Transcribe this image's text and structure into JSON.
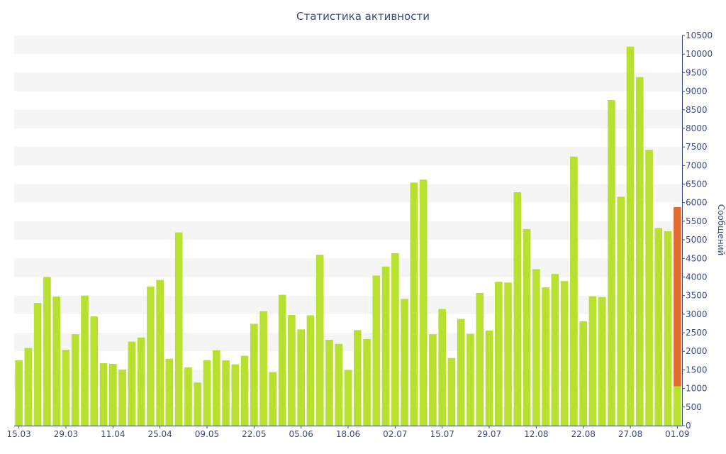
{
  "chart_data": {
    "type": "bar",
    "title": "Статистика активности",
    "ylabel": "Сообщений",
    "xlabel": "",
    "ylim": [
      0,
      10500
    ],
    "y_ticks": [
      0,
      500,
      1000,
      1500,
      2000,
      2500,
      3000,
      3500,
      4000,
      4500,
      5000,
      5500,
      6000,
      6500,
      7000,
      7500,
      8000,
      8500,
      9000,
      9500,
      10000,
      10500
    ],
    "x_tick_labels": [
      "15.03",
      "29.03",
      "11.04",
      "25.04",
      "09.05",
      "22.05",
      "05.06",
      "18.06",
      "02.07",
      "15.07",
      "29.07",
      "12.08",
      "22.08",
      "27.08",
      "01.09"
    ],
    "x_tick_indices": [
      0,
      5,
      10,
      15,
      20,
      25,
      30,
      35,
      40,
      45,
      50,
      55,
      60,
      65,
      70
    ],
    "grid": "horizontal bands",
    "colors": {
      "bar": "#b8e02e",
      "highlight": "#e06a30",
      "axis": "#3a4a82",
      "band": "#f5f5f5"
    },
    "values": [
      1760,
      2090,
      3300,
      4000,
      3470,
      2040,
      2460,
      3500,
      2940,
      1680,
      1660,
      1510,
      2260,
      2370,
      3740,
      3920,
      1800,
      5200,
      1570,
      1160,
      1760,
      2030,
      1760,
      1650,
      1880,
      2740,
      3080,
      1440,
      3520,
      2980,
      2590,
      2970,
      4600,
      2310,
      2200,
      1500,
      2570,
      2330,
      4040,
      4280,
      4640,
      3410,
      6540,
      6620,
      2460,
      3140,
      1820,
      2870,
      2470,
      3570,
      2560,
      3870,
      3850,
      6280,
      5290,
      4210,
      3720,
      4080,
      3890,
      7240,
      2810,
      3480,
      3460,
      8760,
      6160,
      10200,
      9380,
      7420,
      5320,
      5230,
      5880
    ],
    "highlight_last": {
      "total": 5880,
      "lower": 1060
    }
  }
}
